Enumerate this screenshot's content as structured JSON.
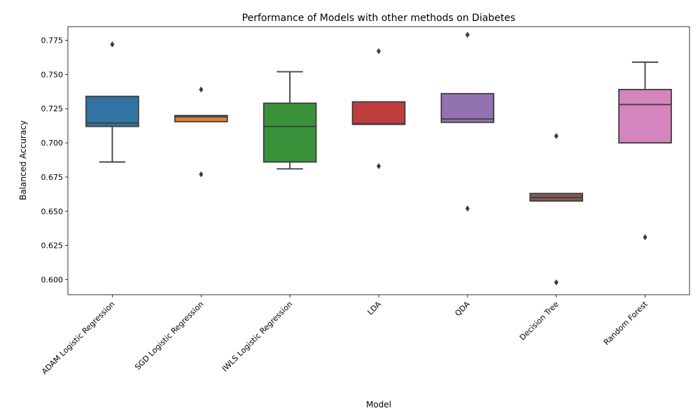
{
  "chart_data": {
    "type": "box",
    "title": "Performance of Models with other methods on Diabetes",
    "xlabel": "Model",
    "ylabel": "Balanced Accuracy",
    "ylim": [
      0.589,
      0.785
    ],
    "yticks": [
      0.6,
      0.625,
      0.65,
      0.675,
      0.7,
      0.725,
      0.75,
      0.775
    ],
    "ytick_labels": [
      "0.600",
      "0.625",
      "0.650",
      "0.675",
      "0.700",
      "0.725",
      "0.750",
      "0.775"
    ],
    "grid": false,
    "categories": [
      "ADAM Logistic Regression",
      "SGD Logistic Regression",
      "IWLS Logistic Regression",
      "LDA",
      "QDA",
      "Decision Tree",
      "Random Forest"
    ],
    "boxes": [
      {
        "q1": 0.712,
        "median": 0.7145,
        "q3": 0.734,
        "whisker_low": 0.686,
        "whisker_high": 0.734,
        "outliers": [
          0.772
        ],
        "color": "#3274a1"
      },
      {
        "q1": 0.7155,
        "median": 0.719,
        "q3": 0.72,
        "whisker_low": 0.7155,
        "whisker_high": 0.72,
        "outliers": [
          0.739,
          0.677
        ],
        "color": "#e1812c"
      },
      {
        "q1": 0.686,
        "median": 0.712,
        "q3": 0.729,
        "whisker_low": 0.681,
        "whisker_high": 0.752,
        "outliers": [],
        "color": "#3a923a"
      },
      {
        "q1": 0.7135,
        "median": 0.714,
        "q3": 0.73,
        "whisker_low": 0.7135,
        "whisker_high": 0.73,
        "outliers": [
          0.767,
          0.683
        ],
        "color": "#c03d3e"
      },
      {
        "q1": 0.715,
        "median": 0.7175,
        "q3": 0.736,
        "whisker_low": 0.715,
        "whisker_high": 0.736,
        "outliers": [
          0.779,
          0.652
        ],
        "color": "#9372b2"
      },
      {
        "q1": 0.6575,
        "median": 0.66,
        "q3": 0.663,
        "whisker_low": 0.6575,
        "whisker_high": 0.663,
        "outliers": [
          0.705,
          0.598
        ],
        "color": "#845b53"
      },
      {
        "q1": 0.7,
        "median": 0.728,
        "q3": 0.739,
        "whisker_low": 0.7,
        "whisker_high": 0.759,
        "outliers": [
          0.631
        ],
        "color": "#d684bd"
      }
    ]
  }
}
